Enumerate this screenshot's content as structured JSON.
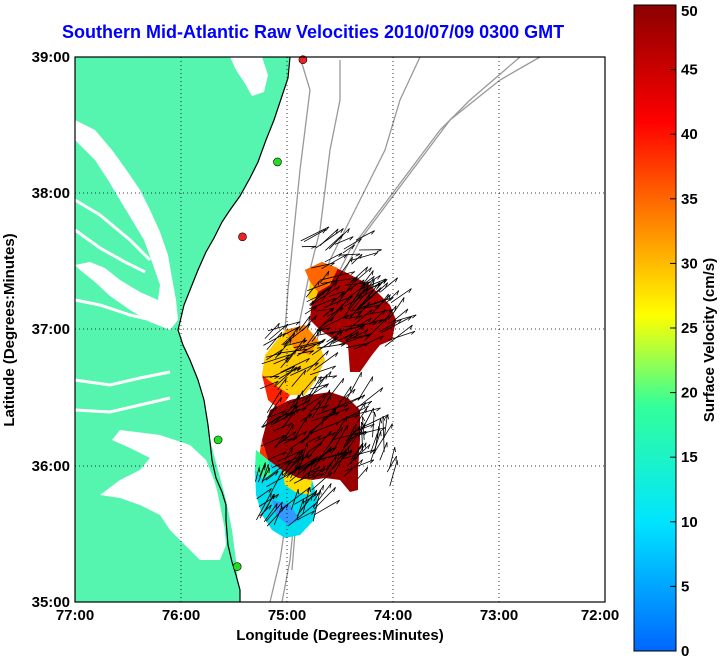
{
  "title": "Southern Mid-Atlantic Raw Velocities 2010/07/09 0300 GMT",
  "x_axis": {
    "label": "Longitude (Degrees:Minutes)",
    "ticks": [
      "77:00",
      "76:00",
      "75:00",
      "74:00",
      "73:00",
      "72:00"
    ]
  },
  "y_axis": {
    "label": "Latitude (Degrees:Minutes)",
    "ticks": [
      "39:00",
      "38:00",
      "37:00",
      "36:00",
      "35:00"
    ]
  },
  "colorbar": {
    "label": "Surface Velocity (cm/s)",
    "ticks": [
      "50",
      "45",
      "40",
      "35",
      "30",
      "25",
      "20",
      "15",
      "10",
      "5",
      "0"
    ],
    "min": 0,
    "max": 50,
    "colors": [
      "#0066ff",
      "#00e5ff",
      "#33ff99",
      "#ffff00",
      "#ff8800",
      "#ff0000",
      "#8b0000"
    ]
  },
  "colors": {
    "land": "#55f5b0",
    "coastline": "#000000",
    "bathymetry": "#999999",
    "grid": "#000000",
    "site_green": "#22dd22",
    "site_red": "#ee2222"
  },
  "chart_data": {
    "type": "vector-field",
    "xlim": [
      -77,
      -72
    ],
    "ylim": [
      35,
      39
    ],
    "clim": [
      0,
      50
    ],
    "grid": true,
    "stations": [
      {
        "lon": -74.85,
        "lat": 38.98,
        "color": "red"
      },
      {
        "lon": -75.09,
        "lat": 38.23,
        "color": "green"
      },
      {
        "lon": -75.42,
        "lat": 37.68,
        "color": "red"
      },
      {
        "lon": -75.65,
        "lat": 36.19,
        "color": "green"
      },
      {
        "lon": -75.47,
        "lat": 35.26,
        "color": "green"
      }
    ],
    "regions": [
      {
        "name": "northern-patch",
        "lon": -74.45,
        "lat": 37.1,
        "speed": 48
      },
      {
        "name": "central-patch",
        "lon": -74.85,
        "lat": 36.25,
        "speed": 49
      },
      {
        "name": "west-patch",
        "lon": -75.2,
        "lat": 36.75,
        "speed": 27
      },
      {
        "name": "southern-patch",
        "lon": -75.25,
        "lat": 35.8,
        "speed": 12
      }
    ]
  }
}
